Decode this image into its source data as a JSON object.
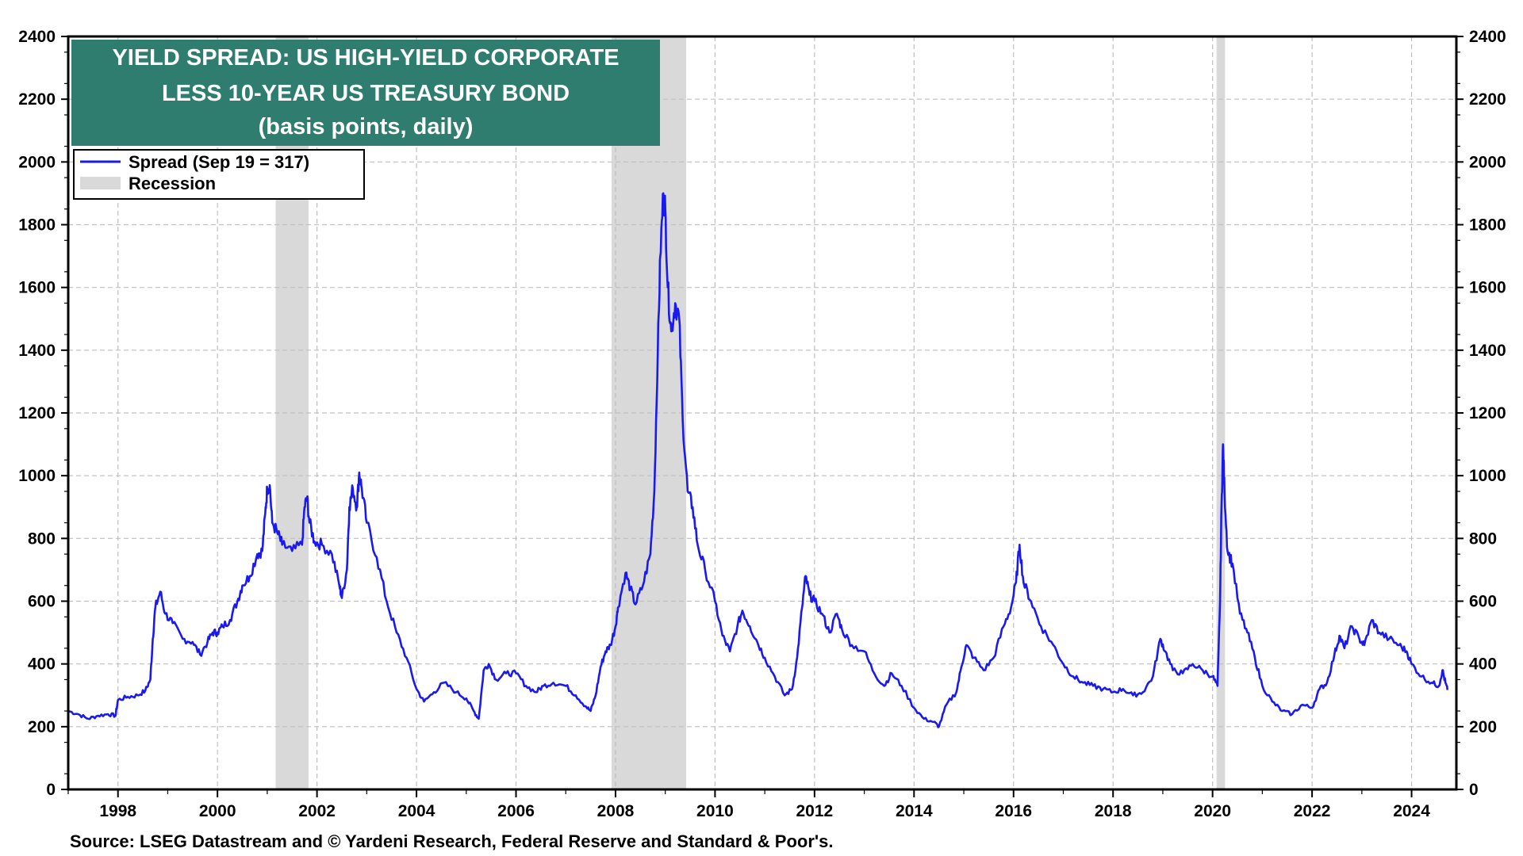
{
  "chart_data": {
    "type": "line",
    "title": "YIELD SPREAD: US HIGH-YIELD CORPORATE",
    "title_line2": "LESS 10-YEAR US TREASURY BOND",
    "subtitle": "(basis points, daily)",
    "source": "Source: LSEG Datastream and © Yardeni Research, Federal Reserve and Standard & Poor's.",
    "title_box_color": "#2e7d6e",
    "line_color": "#1a1aee",
    "recession_color": "#d9d9d9",
    "xlim": [
      1997.0,
      2024.9
    ],
    "ylim": [
      0,
      2400
    ],
    "x_ticks": [
      "1998",
      "2000",
      "2002",
      "2004",
      "2006",
      "2008",
      "2010",
      "2012",
      "2014",
      "2016",
      "2018",
      "2020",
      "2022",
      "2024"
    ],
    "y_ticks": [
      "0",
      "200",
      "400",
      "600",
      "800",
      "1000",
      "1200",
      "1400",
      "1600",
      "1800",
      "2000",
      "2200",
      "2400"
    ],
    "legend": {
      "position": "top-left",
      "series_label": "Spread (Sep 19 = 317)",
      "recession_label": "Recession"
    },
    "recessions": [
      {
        "start": 2001.17,
        "end": 2001.83
      },
      {
        "start": 2007.92,
        "end": 2009.42
      },
      {
        "start": 2020.08,
        "end": 2020.25
      }
    ],
    "series": [
      {
        "name": "Spread (Sep 19 = 317)",
        "points": [
          [
            1997.0,
            250
          ],
          [
            1997.2,
            240
          ],
          [
            1997.4,
            225
          ],
          [
            1997.6,
            235
          ],
          [
            1997.8,
            240
          ],
          [
            1997.95,
            235
          ],
          [
            1998.0,
            285
          ],
          [
            1998.2,
            295
          ],
          [
            1998.4,
            300
          ],
          [
            1998.55,
            315
          ],
          [
            1998.65,
            350
          ],
          [
            1998.7,
            480
          ],
          [
            1998.75,
            580
          ],
          [
            1998.85,
            630
          ],
          [
            1998.95,
            560
          ],
          [
            1999.1,
            530
          ],
          [
            1999.3,
            480
          ],
          [
            1999.5,
            470
          ],
          [
            1999.65,
            430
          ],
          [
            1999.8,
            470
          ],
          [
            1999.9,
            500
          ],
          [
            2000.0,
            500
          ],
          [
            2000.1,
            520
          ],
          [
            2000.25,
            540
          ],
          [
            2000.4,
            600
          ],
          [
            2000.5,
            650
          ],
          [
            2000.65,
            680
          ],
          [
            2000.8,
            750
          ],
          [
            2000.9,
            760
          ],
          [
            2000.96,
            880
          ],
          [
            2001.0,
            960
          ],
          [
            2001.05,
            970
          ],
          [
            2001.1,
            850
          ],
          [
            2001.2,
            820
          ],
          [
            2001.3,
            780
          ],
          [
            2001.5,
            760
          ],
          [
            2001.7,
            780
          ],
          [
            2001.75,
            900
          ],
          [
            2001.8,
            930
          ],
          [
            2001.85,
            850
          ],
          [
            2001.95,
            790
          ],
          [
            2002.1,
            780
          ],
          [
            2002.3,
            750
          ],
          [
            2002.45,
            650
          ],
          [
            2002.5,
            610
          ],
          [
            2002.6,
            700
          ],
          [
            2002.65,
            900
          ],
          [
            2002.72,
            960
          ],
          [
            2002.8,
            900
          ],
          [
            2002.85,
            1010
          ],
          [
            2002.9,
            960
          ],
          [
            2003.0,
            850
          ],
          [
            2003.2,
            740
          ],
          [
            2003.4,
            600
          ],
          [
            2003.6,
            500
          ],
          [
            2003.8,
            420
          ],
          [
            2004.0,
            320
          ],
          [
            2004.15,
            280
          ],
          [
            2004.35,
            310
          ],
          [
            2004.55,
            340
          ],
          [
            2004.8,
            310
          ],
          [
            2005.0,
            290
          ],
          [
            2005.15,
            250
          ],
          [
            2005.25,
            225
          ],
          [
            2005.35,
            380
          ],
          [
            2005.45,
            400
          ],
          [
            2005.6,
            350
          ],
          [
            2005.8,
            370
          ],
          [
            2006.0,
            370
          ],
          [
            2006.2,
            330
          ],
          [
            2006.4,
            310
          ],
          [
            2006.55,
            330
          ],
          [
            2006.75,
            340
          ],
          [
            2007.0,
            330
          ],
          [
            2007.2,
            300
          ],
          [
            2007.4,
            265
          ],
          [
            2007.5,
            250
          ],
          [
            2007.6,
            300
          ],
          [
            2007.7,
            390
          ],
          [
            2007.8,
            440
          ],
          [
            2007.9,
            460
          ],
          [
            2008.0,
            520
          ],
          [
            2008.05,
            580
          ],
          [
            2008.2,
            690
          ],
          [
            2008.3,
            640
          ],
          [
            2008.4,
            590
          ],
          [
            2008.55,
            650
          ],
          [
            2008.7,
            750
          ],
          [
            2008.78,
            950
          ],
          [
            2008.85,
            1400
          ],
          [
            2008.9,
            1700
          ],
          [
            2008.96,
            1900
          ],
          [
            2009.0,
            1850
          ],
          [
            2009.05,
            1600
          ],
          [
            2009.12,
            1460
          ],
          [
            2009.2,
            1550
          ],
          [
            2009.28,
            1500
          ],
          [
            2009.35,
            1180
          ],
          [
            2009.45,
            950
          ],
          [
            2009.55,
            900
          ],
          [
            2009.65,
            780
          ],
          [
            2009.8,
            700
          ],
          [
            2010.0,
            600
          ],
          [
            2010.15,
            490
          ],
          [
            2010.3,
            440
          ],
          [
            2010.45,
            520
          ],
          [
            2010.55,
            570
          ],
          [
            2010.7,
            520
          ],
          [
            2010.85,
            470
          ],
          [
            2011.0,
            420
          ],
          [
            2011.2,
            360
          ],
          [
            2011.4,
            300
          ],
          [
            2011.55,
            320
          ],
          [
            2011.65,
            420
          ],
          [
            2011.75,
            580
          ],
          [
            2011.82,
            680
          ],
          [
            2011.9,
            620
          ],
          [
            2012.0,
            600
          ],
          [
            2012.15,
            560
          ],
          [
            2012.3,
            500
          ],
          [
            2012.45,
            560
          ],
          [
            2012.55,
            510
          ],
          [
            2012.75,
            460
          ],
          [
            2013.0,
            440
          ],
          [
            2013.2,
            370
          ],
          [
            2013.4,
            330
          ],
          [
            2013.55,
            370
          ],
          [
            2013.75,
            330
          ],
          [
            2014.0,
            260
          ],
          [
            2014.2,
            225
          ],
          [
            2014.4,
            215
          ],
          [
            2014.5,
            200
          ],
          [
            2014.65,
            270
          ],
          [
            2014.85,
            310
          ],
          [
            2014.95,
            390
          ],
          [
            2015.05,
            460
          ],
          [
            2015.2,
            420
          ],
          [
            2015.4,
            380
          ],
          [
            2015.6,
            420
          ],
          [
            2015.8,
            520
          ],
          [
            2015.95,
            580
          ],
          [
            2016.05,
            660
          ],
          [
            2016.12,
            780
          ],
          [
            2016.2,
            660
          ],
          [
            2016.35,
            600
          ],
          [
            2016.55,
            520
          ],
          [
            2016.8,
            460
          ],
          [
            2017.0,
            400
          ],
          [
            2017.2,
            360
          ],
          [
            2017.4,
            340
          ],
          [
            2017.6,
            330
          ],
          [
            2017.8,
            320
          ],
          [
            2018.0,
            310
          ],
          [
            2018.2,
            320
          ],
          [
            2018.4,
            300
          ],
          [
            2018.6,
            310
          ],
          [
            2018.8,
            360
          ],
          [
            2018.95,
            480
          ],
          [
            2019.05,
            440
          ],
          [
            2019.2,
            380
          ],
          [
            2019.4,
            370
          ],
          [
            2019.6,
            400
          ],
          [
            2019.8,
            380
          ],
          [
            2020.0,
            360
          ],
          [
            2020.1,
            330
          ],
          [
            2020.15,
            600
          ],
          [
            2020.18,
            900
          ],
          [
            2020.21,
            1100
          ],
          [
            2020.24,
            950
          ],
          [
            2020.3,
            760
          ],
          [
            2020.4,
            720
          ],
          [
            2020.55,
            560
          ],
          [
            2020.7,
            500
          ],
          [
            2020.85,
            420
          ],
          [
            2021.0,
            330
          ],
          [
            2021.2,
            280
          ],
          [
            2021.4,
            250
          ],
          [
            2021.6,
            240
          ],
          [
            2021.8,
            270
          ],
          [
            2022.0,
            260
          ],
          [
            2022.15,
            320
          ],
          [
            2022.3,
            340
          ],
          [
            2022.45,
            430
          ],
          [
            2022.55,
            490
          ],
          [
            2022.65,
            450
          ],
          [
            2022.8,
            520
          ],
          [
            2022.95,
            480
          ],
          [
            2023.05,
            460
          ],
          [
            2023.2,
            540
          ],
          [
            2023.35,
            500
          ],
          [
            2023.55,
            480
          ],
          [
            2023.75,
            460
          ],
          [
            2023.9,
            440
          ],
          [
            2024.0,
            400
          ],
          [
            2024.2,
            360
          ],
          [
            2024.4,
            340
          ],
          [
            2024.55,
            330
          ],
          [
            2024.62,
            380
          ],
          [
            2024.68,
            340
          ],
          [
            2024.72,
            317
          ]
        ]
      }
    ]
  }
}
